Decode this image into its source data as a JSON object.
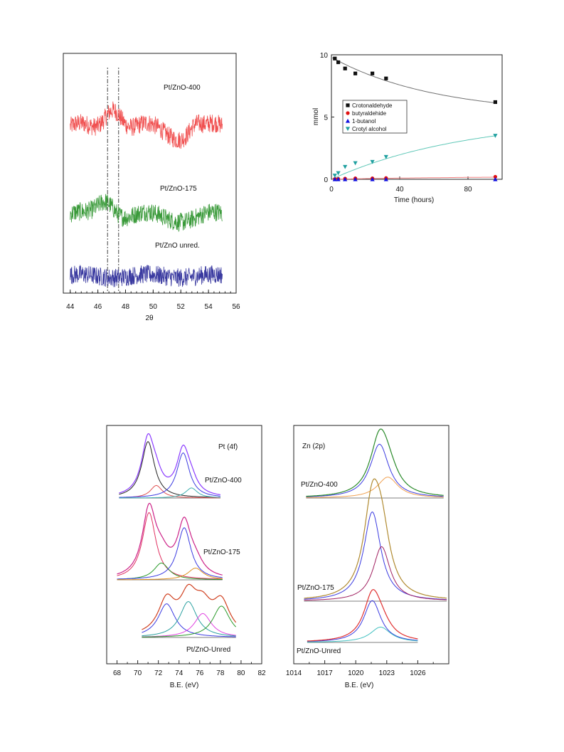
{
  "colors": {
    "xrd_400": "#f05050",
    "xrd_175": "#3a9a3a",
    "xrd_unred": "#3a3aa0",
    "crot": "#111111",
    "buty": "#e01010",
    "buta": "#1010e0",
    "croty": "#20a0a0",
    "fit_gray": "#707070",
    "fit_teal": "#60c8b8",
    "fit_red": "#f08080"
  },
  "chart_data": [
    {
      "id": "xrd",
      "type": "line",
      "xlabel": "2θ",
      "ylabel": "",
      "xlim": [
        43.5,
        56
      ],
      "xticks": [
        44,
        46,
        48,
        50,
        52,
        54,
        56
      ],
      "reference_lines_x": [
        46.7,
        47.5
      ],
      "series": [
        {
          "name": "Pt/ZnO-400",
          "color": "#f05050",
          "baseline": 0.38,
          "amp": 0.1,
          "noise": 0.05,
          "peaks": [
            {
              "x": 47.1,
              "h": 0.35,
              "w": 0.9
            },
            {
              "x": 53.0,
              "h": 0.1,
              "w": 0.6
            }
          ]
        },
        {
          "name": "Pt/ZnO-175",
          "color": "#3a9a3a",
          "baseline": 0.3,
          "amp": 0.06,
          "noise": 0.05,
          "peaks": [
            {
              "x": 46.6,
              "h": 0.22,
              "w": 0.9
            }
          ]
        },
        {
          "name": "Pt/ZnO unred.",
          "color": "#3a3aa0",
          "baseline": 0.18,
          "amp": 0.02,
          "noise": 0.05,
          "peaks": []
        }
      ]
    },
    {
      "id": "kinetics",
      "type": "scatter",
      "xlabel": "Time (hours)",
      "ylabel": "mmol",
      "xlim": [
        0,
        100
      ],
      "ylim": [
        0,
        10
      ],
      "xticks": [
        0,
        40,
        80
      ],
      "yticks": [
        0,
        5,
        10
      ],
      "legend_position": "center-left",
      "series": [
        {
          "name": "Crotonaldehyde",
          "marker": "square",
          "color": "#111111",
          "x": [
            2,
            4,
            8,
            14,
            24,
            32,
            96
          ],
          "y": [
            9.7,
            9.4,
            8.9,
            8.5,
            8.5,
            8.1,
            6.2
          ]
        },
        {
          "name": "butyraldehide",
          "marker": "circle",
          "color": "#e01010",
          "x": [
            2,
            4,
            8,
            14,
            24,
            32,
            96
          ],
          "y": [
            0.02,
            0.04,
            0.06,
            0.08,
            0.08,
            0.1,
            0.2
          ]
        },
        {
          "name": "1-butanol",
          "marker": "triangle-up",
          "color": "#1010e0",
          "x": [
            2,
            4,
            8,
            14,
            24,
            32,
            96
          ],
          "y": [
            0,
            0,
            0,
            0,
            0,
            0,
            0
          ]
        },
        {
          "name": "Crotyl alcohol",
          "marker": "triangle-down",
          "color": "#20a0a0",
          "x": [
            2,
            4,
            8,
            14,
            24,
            32,
            96
          ],
          "y": [
            0.3,
            0.5,
            1.0,
            1.3,
            1.4,
            1.8,
            3.5
          ]
        }
      ],
      "fits": [
        {
          "series": "Crotonaldehyde",
          "color": "#707070",
          "y0": 9.8,
          "A": 4.6,
          "k": 0.0165,
          "form": "decay"
        },
        {
          "series": "Crotyl alcohol",
          "color": "#60c8b8",
          "A": 5.0,
          "k": 0.0125,
          "form": "rise"
        },
        {
          "series": "butyraldehide",
          "color": "#f08080",
          "A": 0.25,
          "k": 0.012,
          "form": "rise"
        }
      ]
    },
    {
      "id": "xps_pt",
      "type": "line",
      "annotation": "Pt (4f)",
      "xlabel": "B.E. (eV)",
      "xlim": [
        67,
        82
      ],
      "xticks": [
        68,
        70,
        72,
        74,
        76,
        78,
        80,
        82
      ],
      "spectra": [
        {
          "name": "Pt/ZnO-400",
          "xrange": [
            68.2,
            78.0
          ],
          "envelope": "#8a3aff",
          "bg_color": "#555",
          "components": [
            {
              "x": 71.0,
              "h": 0.9,
              "w": 0.75,
              "color": "#222222"
            },
            {
              "x": 71.8,
              "h": 0.2,
              "w": 0.7,
              "color": "#e05050"
            },
            {
              "x": 74.4,
              "h": 0.72,
              "w": 0.75,
              "color": "#3a3ae0"
            },
            {
              "x": 75.2,
              "h": 0.16,
              "w": 0.7,
              "color": "#40b0b0"
            }
          ]
        },
        {
          "name": "Pt/ZnO-175",
          "xrange": [
            68.0,
            78.2
          ],
          "envelope": "#cc2288",
          "bg_color": "#555",
          "components": [
            {
              "x": 71.1,
              "h": 0.8,
              "w": 0.8,
              "color": "#e03060"
            },
            {
              "x": 72.3,
              "h": 0.2,
              "w": 0.9,
              "color": "#2a9a2a"
            },
            {
              "x": 74.5,
              "h": 0.62,
              "w": 0.8,
              "color": "#3a3ae0"
            },
            {
              "x": 75.6,
              "h": 0.14,
              "w": 0.9,
              "color": "#e09020"
            }
          ]
        },
        {
          "name": "Pt/ZnO-Unred",
          "xrange": [
            70.4,
            79.5
          ],
          "envelope": "#d04020",
          "bg_color": "#555",
          "components": [
            {
              "x": 72.8,
              "h": 0.45,
              "w": 1.0,
              "color": "#3a3ae0"
            },
            {
              "x": 74.9,
              "h": 0.48,
              "w": 1.0,
              "color": "#2aa0a0"
            },
            {
              "x": 76.3,
              "h": 0.32,
              "w": 1.0,
              "color": "#e040e0"
            },
            {
              "x": 78.1,
              "h": 0.42,
              "w": 1.0,
              "color": "#2a9a2a"
            }
          ]
        }
      ]
    },
    {
      "id": "xps_zn",
      "type": "line",
      "annotation": "Zn (2p)",
      "xlabel": "B.E. (eV)",
      "xlim": [
        1014,
        1029
      ],
      "xticks": [
        1014,
        1017,
        1020,
        1023,
        1026
      ],
      "spectra": [
        {
          "name": "Pt/ZnO-400",
          "xrange": [
            1015.2,
            1028.5
          ],
          "envelope": "#2a8a2a",
          "bg_color": "#555",
          "components": [
            {
              "x": 1022.3,
              "h": 0.72,
              "w": 1.1,
              "color": "#3a3ae0"
            },
            {
              "x": 1023.1,
              "h": 0.28,
              "w": 1.2,
              "color": "#f0a050"
            }
          ]
        },
        {
          "name": "Pt/ZnO-175",
          "xrange": [
            1015.0,
            1028.8
          ],
          "envelope": "#b08a30",
          "bg_color": "#555",
          "components": [
            {
              "x": 1021.6,
              "h": 0.95,
              "w": 1.0,
              "color": "#3a3ae0"
            },
            {
              "x": 1022.5,
              "h": 0.58,
              "w": 1.0,
              "color": "#a02060"
            }
          ]
        },
        {
          "name": "Pt/ZnO-Unred",
          "xrange": [
            1015.3,
            1026.0
          ],
          "envelope": "#e03030",
          "bg_color": "#555",
          "components": [
            {
              "x": 1021.6,
              "h": 0.6,
              "w": 1.0,
              "color": "#3a3ae0"
            },
            {
              "x": 1022.4,
              "h": 0.22,
              "w": 1.2,
              "color": "#40c0c0"
            }
          ]
        }
      ]
    }
  ]
}
